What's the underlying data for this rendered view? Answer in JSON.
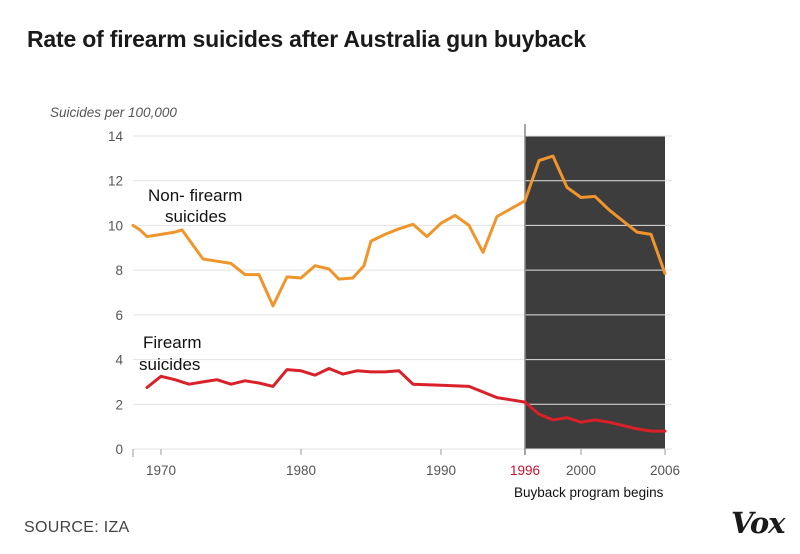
{
  "header": {
    "title": "Rate of firearm suicides after Australia gun buyback"
  },
  "footer": {
    "source": "SOURCE: IZA",
    "logo": "Vox"
  },
  "colors": {
    "non_firearm": "#f0952b",
    "firearm": "#d82128",
    "shade": "#3d3d3d",
    "marker": "#c8102e",
    "grid": "#e3e3e3"
  },
  "chart_data": {
    "type": "line",
    "title": "Rate of firearm suicides after Australia gun buyback",
    "xlabel": "",
    "ylabel": "Suicides per 100,000",
    "xlim": [
      1968,
      2006.5
    ],
    "ylim": [
      0,
      14
    ],
    "x_ticks": [
      1970,
      1980,
      1990,
      2000,
      2006
    ],
    "y_ticks": [
      0,
      2,
      4,
      6,
      8,
      10,
      12,
      14
    ],
    "grid": true,
    "marker": {
      "x": 1996,
      "label": "1996",
      "annotation": "Buyback program begins",
      "shaded_to": 2006
    },
    "series": [
      {
        "name": "Non- firearm suicides",
        "label_lines": [
          "Non- firearm",
          "suicides"
        ],
        "color": "#f0952b",
        "points": [
          [
            1968,
            10.0
          ],
          [
            1968.5,
            9.8
          ],
          [
            1969,
            9.5
          ],
          [
            1970,
            9.6
          ],
          [
            1971,
            9.7
          ],
          [
            1971.5,
            9.8
          ],
          [
            1973,
            8.5
          ],
          [
            1974,
            8.4
          ],
          [
            1975,
            8.3
          ],
          [
            1976,
            7.8
          ],
          [
            1977,
            7.8
          ],
          [
            1978,
            6.4
          ],
          [
            1979,
            7.7
          ],
          [
            1980,
            7.65
          ],
          [
            1981,
            8.2
          ],
          [
            1982,
            8.05
          ],
          [
            1982.7,
            7.6
          ],
          [
            1983.7,
            7.65
          ],
          [
            1984.5,
            8.2
          ],
          [
            1985,
            9.3
          ],
          [
            1986,
            9.6
          ],
          [
            1987,
            9.85
          ],
          [
            1988,
            10.05
          ],
          [
            1989,
            9.5
          ],
          [
            1990,
            10.1
          ],
          [
            1991,
            10.45
          ],
          [
            1992,
            10.0
          ],
          [
            1993,
            8.8
          ],
          [
            1994,
            10.4
          ],
          [
            1995,
            10.75
          ],
          [
            1996,
            11.1
          ],
          [
            1997,
            12.9
          ],
          [
            1998,
            13.1
          ],
          [
            1999,
            11.7
          ],
          [
            2000,
            11.25
          ],
          [
            2001,
            11.3
          ],
          [
            2002,
            10.7
          ],
          [
            2003,
            10.2
          ],
          [
            2004,
            9.7
          ],
          [
            2005,
            9.6
          ],
          [
            2006,
            7.85
          ]
        ]
      },
      {
        "name": "Firearm suicides",
        "label_lines": [
          "Firearm",
          "suicides"
        ],
        "color": "#d82128",
        "points": [
          [
            1969,
            2.75
          ],
          [
            1970,
            3.25
          ],
          [
            1971,
            3.1
          ],
          [
            1972,
            2.9
          ],
          [
            1973,
            3.0
          ],
          [
            1974,
            3.1
          ],
          [
            1975,
            2.9
          ],
          [
            1976,
            3.05
          ],
          [
            1977,
            2.95
          ],
          [
            1978,
            2.8
          ],
          [
            1979,
            3.55
          ],
          [
            1980,
            3.5
          ],
          [
            1981,
            3.3
          ],
          [
            1982,
            3.6
          ],
          [
            1983,
            3.35
          ],
          [
            1984,
            3.5
          ],
          [
            1985,
            3.45
          ],
          [
            1986,
            3.45
          ],
          [
            1987,
            3.5
          ],
          [
            1988,
            2.9
          ],
          [
            1990,
            2.85
          ],
          [
            1992,
            2.8
          ],
          [
            1994,
            2.3
          ],
          [
            1996,
            2.1
          ],
          [
            1997,
            1.55
          ],
          [
            1998,
            1.3
          ],
          [
            1999,
            1.4
          ],
          [
            2000,
            1.2
          ],
          [
            2001,
            1.3
          ],
          [
            2002,
            1.2
          ],
          [
            2003,
            1.05
          ],
          [
            2004,
            0.9
          ],
          [
            2005,
            0.8
          ],
          [
            2006,
            0.8
          ]
        ]
      }
    ]
  }
}
